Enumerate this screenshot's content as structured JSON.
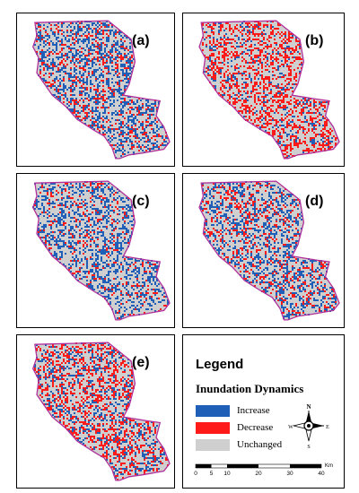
{
  "panels": [
    {
      "label": "(a)",
      "increase": 0.3,
      "decrease": 0.14
    },
    {
      "label": "(b)",
      "increase": 0.1,
      "decrease": 0.3
    },
    {
      "label": "(c)",
      "increase": 0.3,
      "decrease": 0.1
    },
    {
      "label": "(d)",
      "increase": 0.26,
      "decrease": 0.16
    },
    {
      "label": "(e)",
      "increase": 0.18,
      "decrease": 0.26
    }
  ],
  "legend": {
    "title": "Legend",
    "subtitle": "Inundation Dynamics",
    "items": [
      {
        "label": "Increase",
        "color": "#1F5FB8"
      },
      {
        "label": "Decrease",
        "color": "#FF1A1A"
      },
      {
        "label": "Unchanged",
        "color": "#CFCFCF"
      }
    ]
  },
  "north_arrow": {
    "n": "N",
    "s": "S",
    "e": "E",
    "w": "W"
  },
  "scale_bar": {
    "ticks": [
      "0",
      "5",
      "10",
      "20",
      "30",
      "40"
    ],
    "unit": "Km"
  },
  "colors": {
    "boundary": "#B0309A",
    "background": "#CFCFCF",
    "increase": "#1F5FB8",
    "decrease": "#FF1A1A"
  }
}
